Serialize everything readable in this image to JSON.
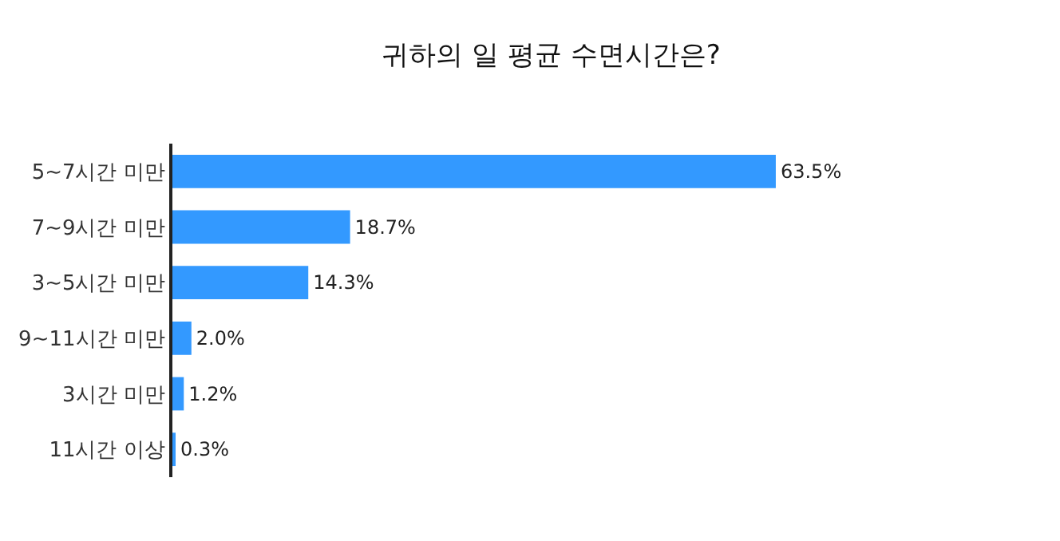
{
  "chart_data": {
    "type": "bar",
    "orientation": "horizontal",
    "title": "귀하의 일 평균 수면시간은?",
    "categories": [
      "5~7시간 미만",
      "7~9시간 미만",
      "3~5시간 미만",
      "9~11시간 미만",
      "3시간 미만",
      "11시간 이상"
    ],
    "values": [
      63.5,
      18.7,
      14.3,
      2.0,
      1.2,
      0.3
    ],
    "value_labels": [
      "63.5%",
      "18.7%",
      "14.3%",
      "2.0%",
      "1.2%",
      "0.3%"
    ],
    "color": "#3399ff",
    "grid": false,
    "legend": false
  }
}
